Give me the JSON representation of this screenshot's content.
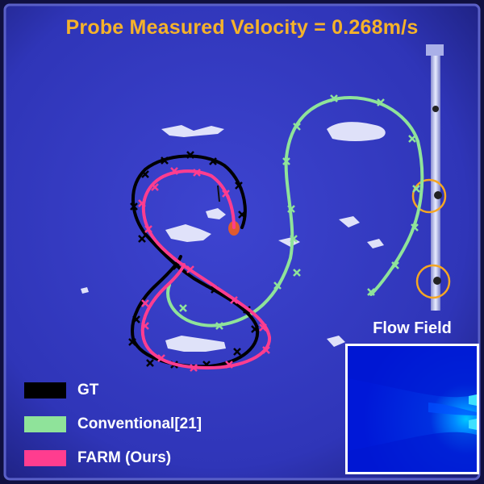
{
  "title": "Probe Measured Velocity = 0.268m/s",
  "flow_field_label": "Flow Field",
  "legend": [
    {
      "label": "GT",
      "color": "#000000"
    },
    {
      "label": "Conventional[21]",
      "color": "#8fe39a"
    },
    {
      "label": "FARM (Ours)",
      "color": "#ff3d8f"
    }
  ],
  "colors": {
    "title": "#f5b22a",
    "pool": "#3338c2",
    "sensor_circle": "#f5a623"
  }
}
